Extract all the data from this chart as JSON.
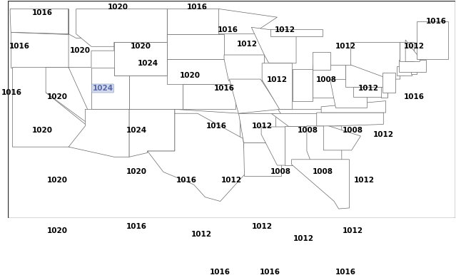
{
  "figsize": [
    6.39,
    3.86
  ],
  "dpi": 100,
  "background_color": "#ffffff",
  "state_face_color": "#ffffff",
  "state_edge_color": "#666666",
  "state_linewidth": 0.5,
  "map_extent": [
    -125,
    -66,
    24,
    50
  ],
  "pressure_labels": [
    {
      "lon": -120.5,
      "lat": 48.5,
      "text": "1016",
      "highlight": false
    },
    {
      "lon": -110.5,
      "lat": 49.2,
      "text": "1020",
      "highlight": false
    },
    {
      "lon": -100.0,
      "lat": 49.2,
      "text": "1016",
      "highlight": false
    },
    {
      "lon": -68.5,
      "lat": 47.5,
      "text": "1016",
      "highlight": false
    },
    {
      "lon": -123.5,
      "lat": 44.5,
      "text": "1016",
      "highlight": false
    },
    {
      "lon": -115.5,
      "lat": 44.0,
      "text": "1020",
      "highlight": false
    },
    {
      "lon": -107.5,
      "lat": 44.5,
      "text": "1020",
      "highlight": false
    },
    {
      "lon": -93.5,
      "lat": 44.8,
      "text": "1012",
      "highlight": false
    },
    {
      "lon": -80.5,
      "lat": 44.5,
      "text": "1012",
      "highlight": false
    },
    {
      "lon": -71.5,
      "lat": 44.5,
      "text": "1012",
      "highlight": false
    },
    {
      "lon": -124.5,
      "lat": 39.0,
      "text": "1016",
      "highlight": false
    },
    {
      "lon": -118.5,
      "lat": 38.5,
      "text": "1020",
      "highlight": false
    },
    {
      "lon": -112.5,
      "lat": 39.5,
      "text": "1024",
      "highlight": true
    },
    {
      "lon": -106.5,
      "lat": 42.5,
      "text": "1024",
      "highlight": false
    },
    {
      "lon": -101.0,
      "lat": 41.0,
      "text": "1020",
      "highlight": false
    },
    {
      "lon": -96.5,
      "lat": 39.5,
      "text": "1016",
      "highlight": false
    },
    {
      "lon": -89.5,
      "lat": 40.5,
      "text": "1012",
      "highlight": false
    },
    {
      "lon": -83.0,
      "lat": 40.5,
      "text": "1008",
      "highlight": false
    },
    {
      "lon": -77.5,
      "lat": 39.5,
      "text": "1012",
      "highlight": false
    },
    {
      "lon": -71.5,
      "lat": 38.5,
      "text": "1016",
      "highlight": false
    },
    {
      "lon": -120.5,
      "lat": 34.5,
      "text": "1020",
      "highlight": false
    },
    {
      "lon": -108.0,
      "lat": 34.5,
      "text": "1024",
      "highlight": false
    },
    {
      "lon": -97.5,
      "lat": 35.0,
      "text": "1016",
      "highlight": false
    },
    {
      "lon": -91.5,
      "lat": 35.0,
      "text": "1012",
      "highlight": false
    },
    {
      "lon": -85.5,
      "lat": 34.5,
      "text": "1008",
      "highlight": false
    },
    {
      "lon": -79.5,
      "lat": 34.5,
      "text": "1008",
      "highlight": false
    },
    {
      "lon": -75.5,
      "lat": 34.0,
      "text": "1012",
      "highlight": false
    },
    {
      "lon": -118.5,
      "lat": 28.5,
      "text": "1020",
      "highlight": false
    },
    {
      "lon": -108.0,
      "lat": 29.5,
      "text": "1020",
      "highlight": false
    },
    {
      "lon": -101.5,
      "lat": 28.5,
      "text": "1016",
      "highlight": false
    },
    {
      "lon": -95.5,
      "lat": 28.5,
      "text": "1012",
      "highlight": false
    },
    {
      "lon": -89.0,
      "lat": 29.5,
      "text": "1008",
      "highlight": false
    },
    {
      "lon": -83.5,
      "lat": 29.5,
      "text": "1008",
      "highlight": false
    },
    {
      "lon": -78.0,
      "lat": 28.5,
      "text": "1012",
      "highlight": false
    },
    {
      "lon": -118.5,
      "lat": 22.5,
      "text": "1020",
      "highlight": false
    },
    {
      "lon": -108.0,
      "lat": 23.0,
      "text": "1016",
      "highlight": false
    },
    {
      "lon": -99.5,
      "lat": 22.0,
      "text": "1012",
      "highlight": false
    },
    {
      "lon": -91.5,
      "lat": 23.0,
      "text": "1012",
      "highlight": false
    },
    {
      "lon": -86.0,
      "lat": 21.5,
      "text": "1012",
      "highlight": false
    },
    {
      "lon": -79.5,
      "lat": 22.5,
      "text": "1012",
      "highlight": false
    },
    {
      "lon": -97.0,
      "lat": 17.5,
      "text": "1016",
      "highlight": false
    },
    {
      "lon": -90.5,
      "lat": 17.5,
      "text": "1016",
      "highlight": false
    },
    {
      "lon": -80.5,
      "lat": 17.5,
      "text": "1016",
      "highlight": false
    },
    {
      "lon": -96.0,
      "lat": 46.5,
      "text": "1016",
      "highlight": false
    },
    {
      "lon": -88.5,
      "lat": 46.5,
      "text": "1012",
      "highlight": false
    }
  ]
}
